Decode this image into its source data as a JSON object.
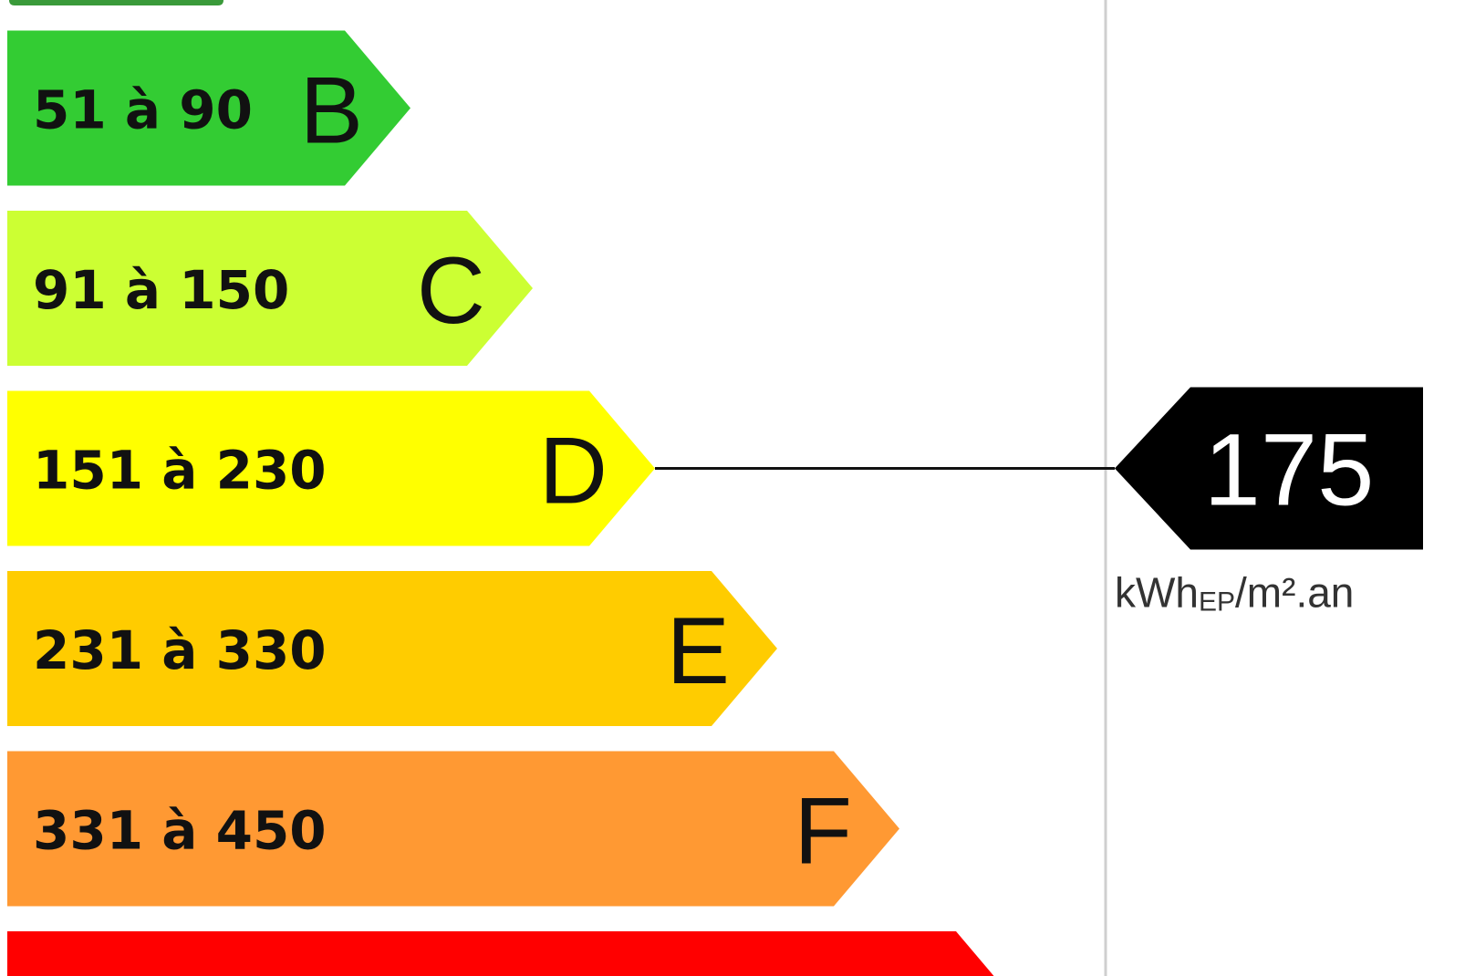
{
  "chart_data": {
    "type": "energy-label",
    "classes": [
      {
        "letter": "",
        "range": "",
        "color": "#3a9a3a"
      },
      {
        "letter": "B",
        "range": "51 à 90",
        "color": "#33cc33"
      },
      {
        "letter": "C",
        "range": "91 à 150",
        "color": "#ccff33"
      },
      {
        "letter": "D",
        "range": "151 à 230",
        "color": "#ffff00"
      },
      {
        "letter": "E",
        "range": "231 à 330",
        "color": "#ffcc00"
      },
      {
        "letter": "F",
        "range": "331 à 450",
        "color": "#ff9933"
      },
      {
        "letter": "",
        "range": "",
        "color": "#ff0000"
      }
    ],
    "indicator": {
      "value": "175",
      "class": "D",
      "unit_main": "kWh",
      "unit_sub": "EP",
      "unit_rest": "/m².an",
      "color": "#000000"
    }
  }
}
